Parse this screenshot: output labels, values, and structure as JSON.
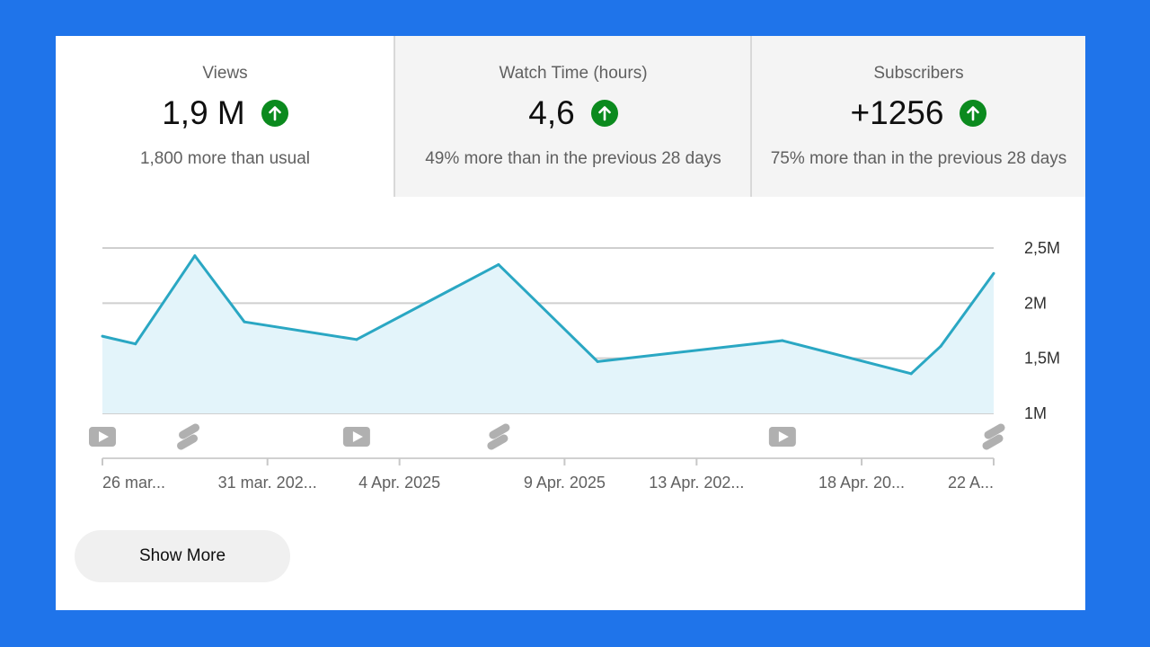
{
  "tabs": [
    {
      "label": "Views",
      "value": "1,9 M",
      "sub": "1,800 more than usual",
      "trend": "up",
      "active": true
    },
    {
      "label": "Watch Time (hours)",
      "value": "4,6",
      "sub": "49% more than in the previous 28 days",
      "trend": "up",
      "active": false
    },
    {
      "label": "Subscribers",
      "value": "+1256",
      "sub": "75% more than in the previous 28 days",
      "trend": "up",
      "active": false
    }
  ],
  "show_more_label": "Show More",
  "colors": {
    "background": "#1f74ea",
    "line": "#2aa7c3",
    "fill": "#e3f4fa",
    "trend_up": "#0b8a1e",
    "grid": "#cfcfcf"
  },
  "chart_data": {
    "type": "area",
    "title": "",
    "xlabel": "",
    "ylabel": "",
    "ylim": [
      1.0,
      2.5
    ],
    "grid": true,
    "y_ticks": [
      {
        "value": 2.5,
        "label": "2,5M"
      },
      {
        "value": 2.0,
        "label": "2M"
      },
      {
        "value": 1.5,
        "label": "1,5M"
      },
      {
        "value": 1.0,
        "label": "1M"
      }
    ],
    "x_ticks": [
      "26 mar...",
      "31 mar.  202...",
      "4 Apr.  2025",
      "9 Apr.  2025",
      "13 Apr.  202...",
      "18 Apr.  20...",
      "22 A..."
    ],
    "x_tick_days": [
      0,
      5,
      9,
      14,
      18,
      23,
      27
    ],
    "series": [
      {
        "name": "",
        "x_days": [
          0,
          1,
          2.8,
          4.3,
          7.7,
          12,
          15,
          20.6,
          24.5,
          25.4,
          27
        ],
        "values": [
          1.7,
          1.63,
          2.43,
          1.83,
          1.67,
          2.35,
          1.47,
          1.66,
          1.36,
          1.61,
          2.27
        ]
      }
    ],
    "upload_markers": [
      {
        "day": 0,
        "kind": "video-icon"
      },
      {
        "day": 2.6,
        "kind": "shorts-icon"
      },
      {
        "day": 7.7,
        "kind": "video-icon"
      },
      {
        "day": 12,
        "kind": "shorts-icon"
      },
      {
        "day": 20.6,
        "kind": "video-icon"
      },
      {
        "day": 27,
        "kind": "shorts-icon"
      }
    ]
  }
}
